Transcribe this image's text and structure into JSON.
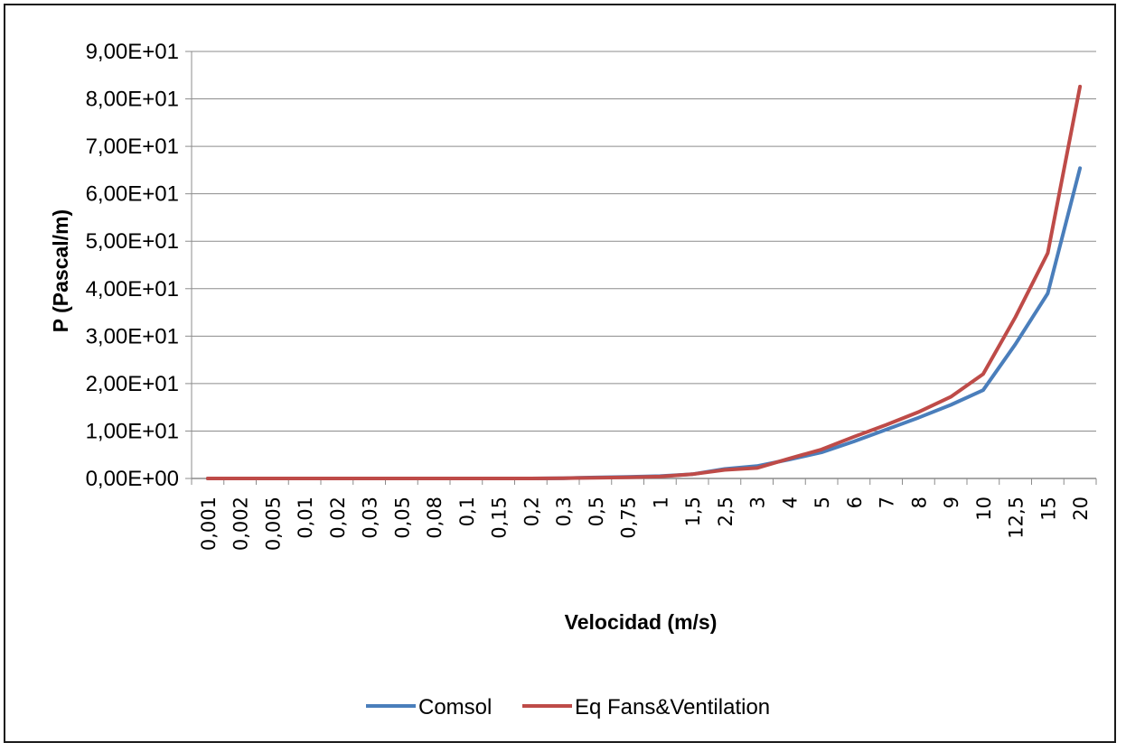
{
  "chart_data": {
    "type": "line",
    "title": "",
    "xlabel": "Velocidad (m/s)",
    "ylabel": "P (Pascal/m)",
    "categories": [
      "0,001",
      "0,002",
      "0,005",
      "0,01",
      "0,02",
      "0,03",
      "0,05",
      "0,08",
      "0,1",
      "0,15",
      "0,2",
      "0,3",
      "0,5",
      "0,75",
      "1",
      "1,5",
      "2,5",
      "3",
      "4",
      "5",
      "6",
      "7",
      "8",
      "9",
      "10",
      "12,5",
      "15",
      "20"
    ],
    "y_ticks": [
      {
        "value": 0,
        "label": "0,00E+00"
      },
      {
        "value": 10,
        "label": "1,00E+01"
      },
      {
        "value": 20,
        "label": "2,00E+01"
      },
      {
        "value": 30,
        "label": "3,00E+01"
      },
      {
        "value": 40,
        "label": "4,00E+01"
      },
      {
        "value": 50,
        "label": "5,00E+01"
      },
      {
        "value": 60,
        "label": "6,00E+01"
      },
      {
        "value": 70,
        "label": "7,00E+01"
      },
      {
        "value": 80,
        "label": "8,00E+01"
      },
      {
        "value": 90,
        "label": "9,00E+01"
      }
    ],
    "ylim": [
      0,
      90
    ],
    "grid": true,
    "legend_position": "bottom",
    "series": [
      {
        "name": "Comsol",
        "color": "#4a7ebb",
        "values": [
          0,
          0,
          0,
          0,
          0,
          0,
          0,
          0,
          0,
          0,
          0,
          0.05,
          0.2,
          0.35,
          0.5,
          0.9,
          2.0,
          2.6,
          4.0,
          5.5,
          7.8,
          10.3,
          12.8,
          15.5,
          18.6,
          28.3,
          39.0,
          65.4
        ]
      },
      {
        "name": "Eq Fans&Ventilation",
        "color": "#be4b48",
        "values": [
          0,
          0,
          0,
          0,
          0,
          0,
          0,
          0,
          0,
          0,
          0,
          0.05,
          0.15,
          0.25,
          0.4,
          0.9,
          1.8,
          2.2,
          4.2,
          6.1,
          8.8,
          11.3,
          14.0,
          17.2,
          22.0,
          34.0,
          47.5,
          82.6
        ]
      }
    ]
  }
}
